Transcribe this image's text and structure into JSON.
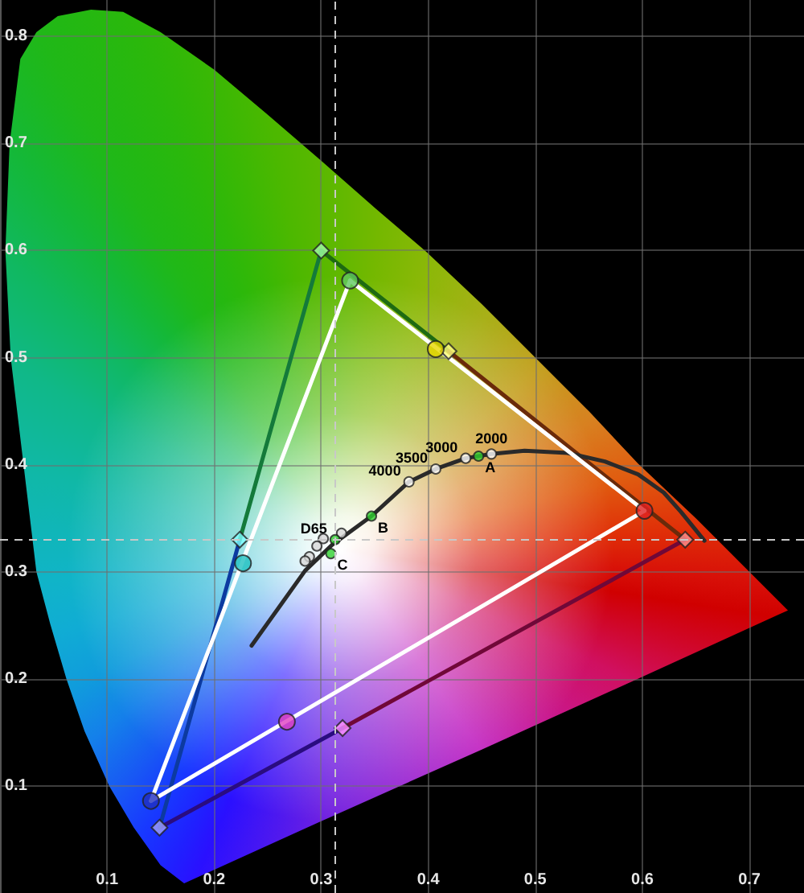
{
  "chart_data": {
    "type": "line",
    "xlim": [
      0,
      0.751
    ],
    "ylim": [
      0,
      0.834
    ],
    "xticks": [
      0.1,
      0.2,
      0.3,
      0.4,
      0.5,
      0.6,
      0.7
    ],
    "yticks": [
      0.1,
      0.2,
      0.3,
      0.4,
      0.5,
      0.6,
      0.7,
      0.8
    ],
    "grid": true,
    "marker": "none",
    "series": [
      {
        "type": "area",
        "x": [
          0.172,
          0.15,
          0.125,
          0.102,
          0.079,
          0.062,
          0.047,
          0.034,
          0.022,
          0.01,
          0.005,
          0.009,
          0.019,
          0.034,
          0.054,
          0.085,
          0.115,
          0.15,
          0.2,
          0.25,
          0.3,
          0.35,
          0.398,
          0.45,
          0.5,
          0.55,
          0.596,
          0.65,
          0.699,
          0.736,
          0.6,
          0.45,
          0.3,
          0.172
        ],
        "values": [
          0.009,
          0.026,
          0.061,
          0.1,
          0.151,
          0.2,
          0.251,
          0.3,
          0.4,
          0.5,
          0.6,
          0.7,
          0.779,
          0.804,
          0.819,
          0.825,
          0.823,
          0.804,
          0.769,
          0.727,
          0.684,
          0.64,
          0.599,
          0.55,
          0.5,
          0.45,
          0.401,
          0.35,
          0.301,
          0.264,
          0.202,
          0.134,
          0.067,
          0.009
        ],
        "colors": [
          "#2a10ff",
          "#2020ff",
          "#1838ff",
          "#1858f4",
          "#1480ea",
          "#109cdc",
          "#10acd4",
          "#10b4c8",
          "#10b8a8",
          "#10b888",
          "#10b860",
          "#14b838",
          "#1cb820",
          "#20b818",
          "#22b814",
          "#26b810",
          "#2ab80c",
          "#30b808",
          "#3cb804",
          "#4cb800",
          "#5cb800",
          "#74b800",
          "#8cb808",
          "#a8b018",
          "#c4a020",
          "#d88020",
          "#e05c10",
          "#e03008",
          "#d81008",
          "#d00000",
          "#d01060",
          "#c020c0",
          "#7020e0",
          "#2a10ff"
        ]
      },
      {
        "x": [
          0.3,
          0.419
        ],
        "values": [
          0.6,
          0.506
        ],
        "color": "#1e6a12"
      },
      {
        "x": [
          0.419,
          0.64
        ],
        "values": [
          0.506,
          0.33
        ],
        "color": "#6a2a0a"
      },
      {
        "x": [
          0.64,
          0.32
        ],
        "values": [
          0.33,
          0.154
        ],
        "color": "#700838"
      },
      {
        "x": [
          0.32,
          0.149
        ],
        "values": [
          0.154,
          0.061
        ],
        "color": "#2a0c80"
      },
      {
        "x": [
          0.149,
          0.224
        ],
        "values": [
          0.061,
          0.33
        ],
        "color": "#0c3aa0"
      },
      {
        "x": [
          0.224,
          0.3
        ],
        "values": [
          0.33,
          0.6
        ],
        "color": "#147a3a"
      },
      {
        "type": "scatter",
        "marker": "diamond",
        "x": [
          0.64,
          0.419,
          0.3,
          0.224,
          0.149,
          0.32
        ],
        "values": [
          0.33,
          0.506,
          0.6,
          0.33,
          0.061,
          0.154
        ],
        "colors": [
          "#ff9090",
          "#ffff80",
          "#a0ffa0",
          "#80ffff",
          "#a0a0ff",
          "#ff90ff"
        ]
      },
      {
        "x": [
          0.235,
          0.26,
          0.285,
          0.31,
          0.347,
          0.382,
          0.407,
          0.435,
          0.459,
          0.49,
          0.53,
          0.565,
          0.596,
          0.62,
          0.636,
          0.658
        ],
        "values": [
          0.231,
          0.266,
          0.301,
          0.325,
          0.352,
          0.384,
          0.396,
          0.406,
          0.41,
          0.413,
          0.411,
          0.403,
          0.391,
          0.374,
          0.356,
          0.329
        ],
        "color": "#2a2a2a"
      },
      {
        "type": "scatter",
        "marker": "circle",
        "x": [
          0.602,
          0.407,
          0.327,
          0.227,
          0.141,
          0.268
        ],
        "values": [
          0.357,
          0.508,
          0.572,
          0.308,
          0.086,
          0.16
        ],
        "colors": [
          "#e02020",
          "#e8d800",
          "#60c860",
          "#20c0c0",
          "#2030c0",
          "#e040c0"
        ]
      },
      {
        "x": [
          0.602,
          0.327
        ],
        "values": [
          0.357,
          0.572
        ],
        "color": "#ffffff"
      },
      {
        "x": [
          0.327,
          0.141
        ],
        "values": [
          0.572,
          0.086
        ],
        "color": "#ffffff"
      },
      {
        "x": [
          0.141,
          0.602
        ],
        "values": [
          0.086,
          0.357
        ],
        "color": "#ffffff"
      },
      {
        "type": "scatter",
        "marker": "circle",
        "x": [
          0.319,
          0.302,
          0.296,
          0.289,
          0.285
        ],
        "values": [
          0.336,
          0.331,
          0.324,
          0.314,
          0.31
        ],
        "color": "#d8d8d8"
      },
      {
        "type": "scatter",
        "marker": "circle",
        "x": [
          0.382,
          0.407,
          0.435,
          0.459
        ],
        "values": [
          0.384,
          0.396,
          0.406,
          0.41
        ],
        "color": "#ffffff"
      },
      {
        "type": "scatter",
        "marker": "circle",
        "x": [
          0.447,
          0.347,
          0.309,
          0.313
        ],
        "values": [
          0.408,
          0.352,
          0.317,
          0.33
        ],
        "color": "#30d030"
      }
    ],
    "ref_lines": [
      {
        "axis": "x",
        "value": 0.313,
        "color": "#c8c8c8",
        "line_style": "dashed"
      },
      {
        "axis": "y",
        "value": 0.33,
        "color": "#c8c8c8",
        "line_style": "dashed"
      }
    ],
    "annotations": [
      {
        "text": "2000",
        "x": 0.459,
        "y": 0.41
      },
      {
        "text": "3000",
        "x": 0.435,
        "y": 0.406
      },
      {
        "text": "3500",
        "x": 0.407,
        "y": 0.396
      },
      {
        "text": "4000",
        "x": 0.382,
        "y": 0.384
      },
      {
        "text": "A",
        "x": 0.447,
        "y": 0.408
      },
      {
        "text": "B",
        "x": 0.347,
        "y": 0.352
      },
      {
        "text": "C",
        "x": 0.309,
        "y": 0.317
      },
      {
        "text": "D65",
        "x": 0.313,
        "y": 0.33
      }
    ]
  }
}
